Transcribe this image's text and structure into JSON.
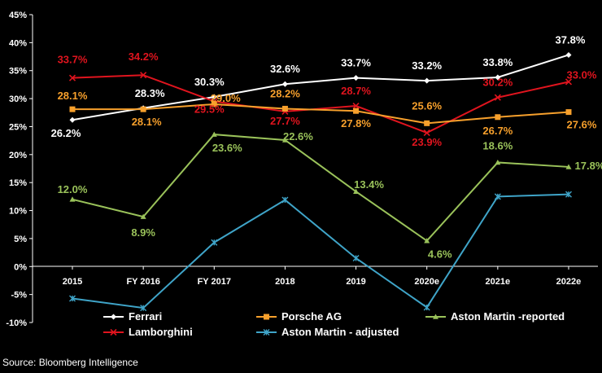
{
  "chart_data": {
    "type": "line",
    "title": "",
    "xlabel": "",
    "ylabel": "",
    "ylim": [
      -10,
      45
    ],
    "yticks": [
      "-10%",
      "-5%",
      "0%",
      "5%",
      "10%",
      "15%",
      "20%",
      "25%",
      "30%",
      "35%",
      "40%",
      "45%"
    ],
    "ytick_values": [
      -10,
      -5,
      0,
      5,
      10,
      15,
      20,
      25,
      30,
      35,
      40,
      45
    ],
    "categories": [
      "2015",
      "FY 2016",
      "FY 2017",
      "2018",
      "2019",
      "2020e",
      "2021e",
      "2022e"
    ],
    "grid": false,
    "series": [
      {
        "name": "Ferrari",
        "color": "#ffffff",
        "marker": "diamond",
        "values": [
          26.2,
          28.3,
          30.3,
          32.6,
          33.7,
          33.2,
          33.8,
          37.8
        ],
        "labels": [
          "26.2%",
          "28.3%",
          "30.3%",
          "32.6%",
          "33.7%",
          "33.2%",
          "33.8%",
          "37.8%"
        ]
      },
      {
        "name": "Lamborghini",
        "color": "#e0141e",
        "marker": "x",
        "values": [
          33.7,
          34.2,
          29.5,
          27.7,
          28.7,
          23.9,
          30.2,
          33.0
        ],
        "labels": [
          "33.7%",
          "34.2%",
          "29.5%",
          "27.7%",
          "28.7%",
          "23.9%",
          "30.2%",
          "33.0%"
        ]
      },
      {
        "name": "Porsche AG",
        "color": "#f7a02c",
        "marker": "square",
        "values": [
          28.1,
          28.1,
          29.0,
          28.2,
          27.8,
          25.6,
          26.7,
          27.6
        ],
        "labels": [
          "28.1%",
          "28.1%",
          "29.0%",
          "28.2%",
          "27.8%",
          "25.6%",
          "26.7%",
          "27.6%"
        ]
      },
      {
        "name": "Aston Martin - adjusted",
        "color": "#3fa4c8",
        "marker": "star",
        "values": [
          -5.7,
          -7.4,
          4.3,
          11.9,
          1.5,
          -7.3,
          12.5,
          12.9
        ],
        "labels": []
      },
      {
        "name": "Aston Martin -reported",
        "color": "#9ac25a",
        "marker": "triangle",
        "values": [
          12.0,
          8.9,
          23.6,
          22.6,
          13.4,
          4.6,
          18.6,
          17.8
        ],
        "labels": [
          "12.0%",
          "8.9%",
          "23.6%",
          "22.6%",
          "13.4%",
          "4.6%",
          "18.6%",
          "17.8%"
        ]
      }
    ],
    "legend": [
      "Ferrari",
      "Porsche AG",
      "Aston Martin -reported",
      "Lamborghini",
      "Aston Martin - adjusted"
    ],
    "source": "Source: Bloomberg Intelligence"
  }
}
